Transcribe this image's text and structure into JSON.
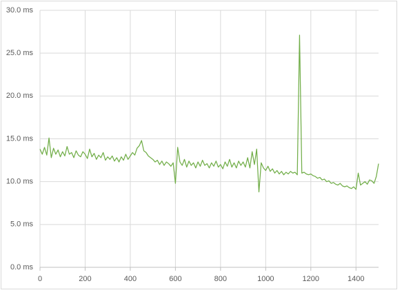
{
  "chart_data": {
    "type": "line",
    "color": "#70ad47",
    "grid": true,
    "xlim": [
      0,
      1500
    ],
    "xticks": [
      0,
      200,
      400,
      600,
      800,
      1000,
      1200,
      1400
    ],
    "ylim": [
      0,
      30
    ],
    "yticks": [
      {
        "value": 0,
        "label": "0.0 ms"
      },
      {
        "value": 5,
        "label": "5.0 ms"
      },
      {
        "value": 10,
        "label": "10.0 ms"
      },
      {
        "value": 15,
        "label": "15.0 ms"
      },
      {
        "value": 20,
        "label": "20.0 ms"
      },
      {
        "value": 25,
        "label": "25.0 ms"
      },
      {
        "value": 30,
        "label": "30.0 ms"
      }
    ],
    "x": [
      0,
      10,
      20,
      30,
      40,
      50,
      60,
      70,
      80,
      90,
      100,
      110,
      120,
      130,
      140,
      150,
      160,
      170,
      180,
      190,
      200,
      210,
      220,
      230,
      240,
      250,
      260,
      270,
      280,
      290,
      300,
      310,
      320,
      330,
      340,
      350,
      360,
      370,
      380,
      390,
      400,
      410,
      420,
      430,
      440,
      450,
      460,
      470,
      480,
      490,
      500,
      510,
      520,
      530,
      540,
      550,
      560,
      570,
      580,
      590,
      600,
      610,
      620,
      630,
      640,
      650,
      660,
      670,
      680,
      690,
      700,
      710,
      720,
      730,
      740,
      750,
      760,
      770,
      780,
      790,
      800,
      810,
      820,
      830,
      840,
      850,
      860,
      870,
      880,
      890,
      900,
      910,
      920,
      930,
      940,
      950,
      960,
      970,
      980,
      990,
      1000,
      1010,
      1020,
      1030,
      1040,
      1050,
      1060,
      1070,
      1080,
      1090,
      1100,
      1110,
      1120,
      1130,
      1140,
      1150,
      1160,
      1170,
      1180,
      1190,
      1200,
      1210,
      1220,
      1230,
      1240,
      1250,
      1260,
      1270,
      1280,
      1290,
      1300,
      1310,
      1320,
      1330,
      1340,
      1350,
      1360,
      1370,
      1380,
      1390,
      1400,
      1410,
      1420,
      1430,
      1440,
      1450,
      1460,
      1470,
      1480,
      1490,
      1500
    ],
    "values": [
      13.8,
      13.2,
      14.0,
      13.1,
      15.1,
      12.8,
      13.9,
      13.2,
      13.7,
      12.9,
      13.5,
      13.0,
      14.1,
      13.2,
      13.4,
      12.8,
      13.6,
      13.1,
      12.9,
      13.5,
      13.2,
      12.7,
      13.8,
      12.9,
      13.3,
      12.6,
      13.1,
      12.8,
      13.4,
      12.5,
      12.9,
      12.6,
      13.0,
      12.4,
      12.8,
      12.3,
      12.9,
      12.5,
      13.2,
      12.6,
      13.0,
      13.4,
      13.1,
      13.9,
      14.2,
      14.8,
      13.6,
      13.4,
      13.0,
      12.8,
      12.6,
      12.3,
      12.5,
      12.0,
      12.4,
      11.9,
      12.3,
      12.1,
      11.8,
      12.2,
      9.8,
      14.0,
      12.3,
      11.9,
      12.6,
      11.7,
      12.4,
      11.9,
      12.2,
      11.6,
      12.3,
      11.8,
      12.5,
      11.9,
      12.1,
      11.6,
      12.2,
      11.8,
      12.4,
      11.7,
      12.0,
      11.5,
      12.3,
      11.8,
      12.6,
      11.7,
      12.2,
      11.6,
      12.4,
      11.9,
      12.3,
      11.7,
      12.8,
      11.6,
      13.5,
      12.0,
      13.8,
      8.8,
      12.2,
      11.6,
      11.3,
      11.8,
      11.2,
      11.5,
      11.0,
      11.3,
      10.9,
      11.2,
      10.8,
      11.1,
      10.9,
      11.2,
      11.0,
      11.1,
      10.8,
      27.1,
      11.0,
      11.1,
      10.9,
      10.8,
      10.9,
      10.7,
      10.6,
      10.4,
      10.5,
      10.2,
      10.3,
      10.0,
      10.1,
      9.8,
      9.9,
      9.7,
      9.6,
      9.8,
      9.5,
      9.4,
      9.5,
      9.3,
      9.2,
      9.4,
      9.1,
      11.0,
      9.6,
      9.8,
      10.0,
      9.7,
      10.2,
      10.1,
      9.8,
      10.6,
      12.1
    ]
  }
}
